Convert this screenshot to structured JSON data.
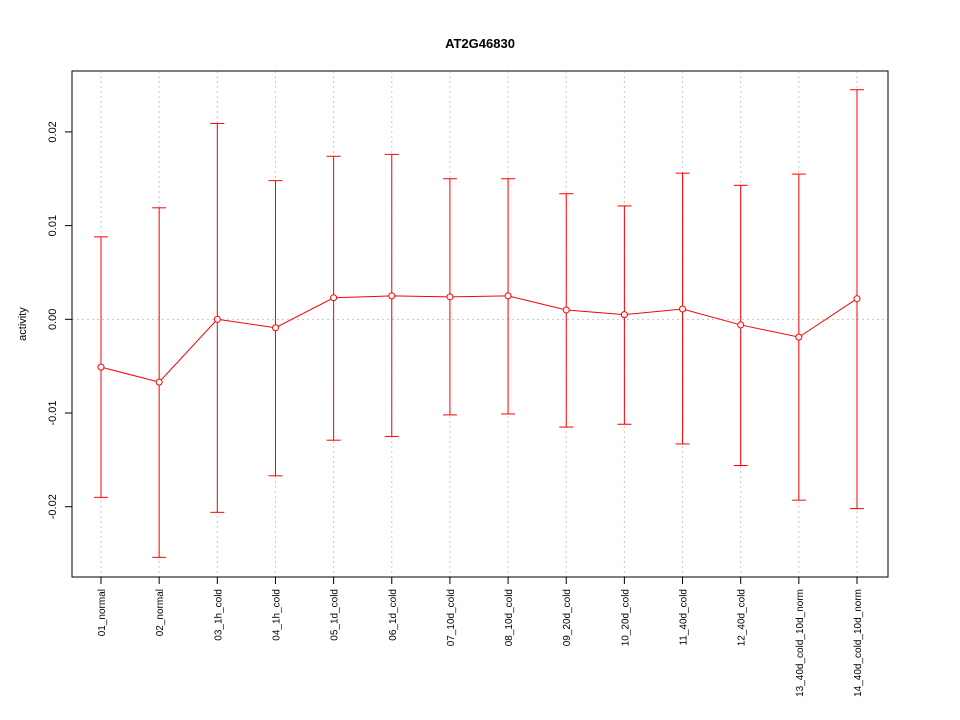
{
  "chart_data": {
    "type": "line",
    "title": "AT2G46830",
    "xlabel": "",
    "ylabel": "activity",
    "ylim": [
      -0.0275,
      0.0265
    ],
    "yticks": [
      -0.02,
      -0.01,
      0.0,
      0.01,
      0.02
    ],
    "ytick_labels": [
      "-0.02",
      "-0.01",
      "0.00",
      "0.01",
      "0.02"
    ],
    "grid": true,
    "colors": {
      "series": "#ff0000",
      "grid": "#c8c8c8",
      "frame": "#000000"
    },
    "categories": [
      "01_normal",
      "02_normal",
      "03_1h_cold",
      "04_1h_cold",
      "05_1d_cold",
      "06_1d_cold",
      "07_10d_cold",
      "08_10d_cold",
      "09_20d_cold",
      "10_20d_cold",
      "11_40d_cold",
      "12_40d_cold",
      "13_40d_cold_10d_norm",
      "14_40d_cold_10d_norm"
    ],
    "series": [
      {
        "values": [
          -0.0051,
          -0.0067,
          0.0,
          -0.0009,
          0.0023,
          0.0025,
          0.0024,
          0.0025,
          0.001,
          0.0005,
          0.0011,
          -0.0006,
          -0.0019,
          0.0022
        ],
        "upper": [
          0.0088,
          0.0119,
          0.0209,
          0.0148,
          0.0174,
          0.0176,
          0.015,
          0.015,
          0.0134,
          0.0121,
          0.0156,
          0.0143,
          0.0155,
          0.0245
        ],
        "lower": [
          -0.019,
          -0.0254,
          -0.0206,
          -0.0167,
          -0.0129,
          -0.0125,
          -0.0102,
          -0.0101,
          -0.0115,
          -0.0112,
          -0.0133,
          -0.0156,
          -0.0193,
          -0.0202
        ]
      }
    ]
  }
}
